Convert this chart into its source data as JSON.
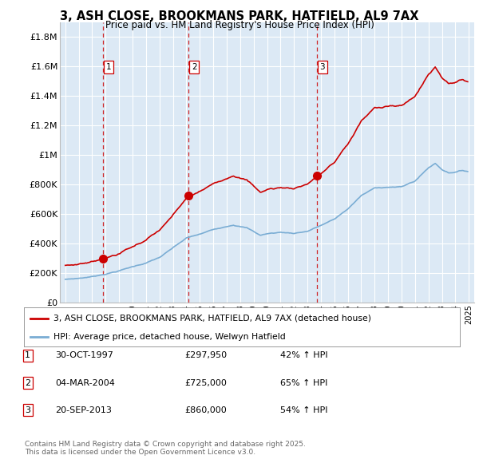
{
  "title": "3, ASH CLOSE, BROOKMANS PARK, HATFIELD, AL9 7AX",
  "subtitle": "Price paid vs. HM Land Registry's House Price Index (HPI)",
  "ylim": [
    0,
    1900000
  ],
  "yticks": [
    0,
    200000,
    400000,
    600000,
    800000,
    1000000,
    1200000,
    1400000,
    1600000,
    1800000
  ],
  "ytick_labels": [
    "£0",
    "£200K",
    "£400K",
    "£600K",
    "£800K",
    "£1M",
    "£1.2M",
    "£1.4M",
    "£1.6M",
    "£1.8M"
  ],
  "xlim_start": 1994.6,
  "xlim_end": 2025.4,
  "sale_dates": [
    1997.83,
    2004.18,
    2013.72
  ],
  "sale_prices": [
    297950,
    725000,
    860000
  ],
  "sale_labels": [
    "1",
    "2",
    "3"
  ],
  "background_color": "#dce9f5",
  "grid_color": "#ffffff",
  "red_color": "#cc0000",
  "blue_color": "#7aadd4",
  "legend_line1": "3, ASH CLOSE, BROOKMANS PARK, HATFIELD, AL9 7AX (detached house)",
  "legend_line2": "HPI: Average price, detached house, Welwyn Hatfield",
  "table_rows": [
    [
      "1",
      "30-OCT-1997",
      "£297,950",
      "42% ↑ HPI"
    ],
    [
      "2",
      "04-MAR-2004",
      "£725,000",
      "65% ↑ HPI"
    ],
    [
      "3",
      "20-SEP-2013",
      "£860,000",
      "54% ↑ HPI"
    ]
  ],
  "footer": "Contains HM Land Registry data © Crown copyright and database right 2025.\nThis data is licensed under the Open Government Licence v3.0."
}
